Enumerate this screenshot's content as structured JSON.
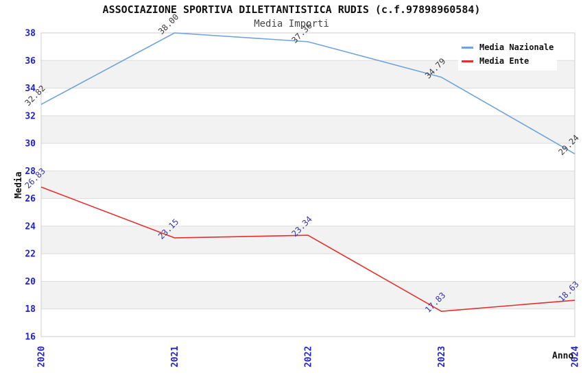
{
  "chart_data": {
    "type": "line",
    "title": "ASSOCIAZIONE SPORTIVA DILETTANTISTICA RUDIS (c.f.97898960584)",
    "subtitle": "Media Importi",
    "xlabel": "Anno",
    "ylabel": "Media",
    "x": [
      "2020",
      "2021",
      "2022",
      "2023",
      "2024"
    ],
    "y_ticks": [
      16,
      18,
      20,
      22,
      24,
      26,
      28,
      30,
      32,
      34,
      36,
      38
    ],
    "ylim": [
      16,
      38
    ],
    "series": [
      {
        "name": "Media Nazionale",
        "color": "#6fa3d9",
        "label_color": "#3c3c3c",
        "values": [
          32.82,
          38.0,
          37.36,
          34.79,
          29.24
        ]
      },
      {
        "name": "Media Ente",
        "color": "#e62e2e",
        "label_color": "#3434a8",
        "values": [
          26.83,
          23.15,
          23.34,
          17.83,
          18.63
        ]
      }
    ],
    "legend_position": "top-right",
    "grid": "horizontal gridlines with alternating gray bands",
    "x_tick_rotation": -90,
    "data_label_rotation": -45,
    "colors": {
      "band": "#f2f2f2",
      "grid": "#dcdcdc",
      "border": "#cccccc",
      "tick_label": "#2222cc",
      "background": "#ffffff"
    }
  }
}
